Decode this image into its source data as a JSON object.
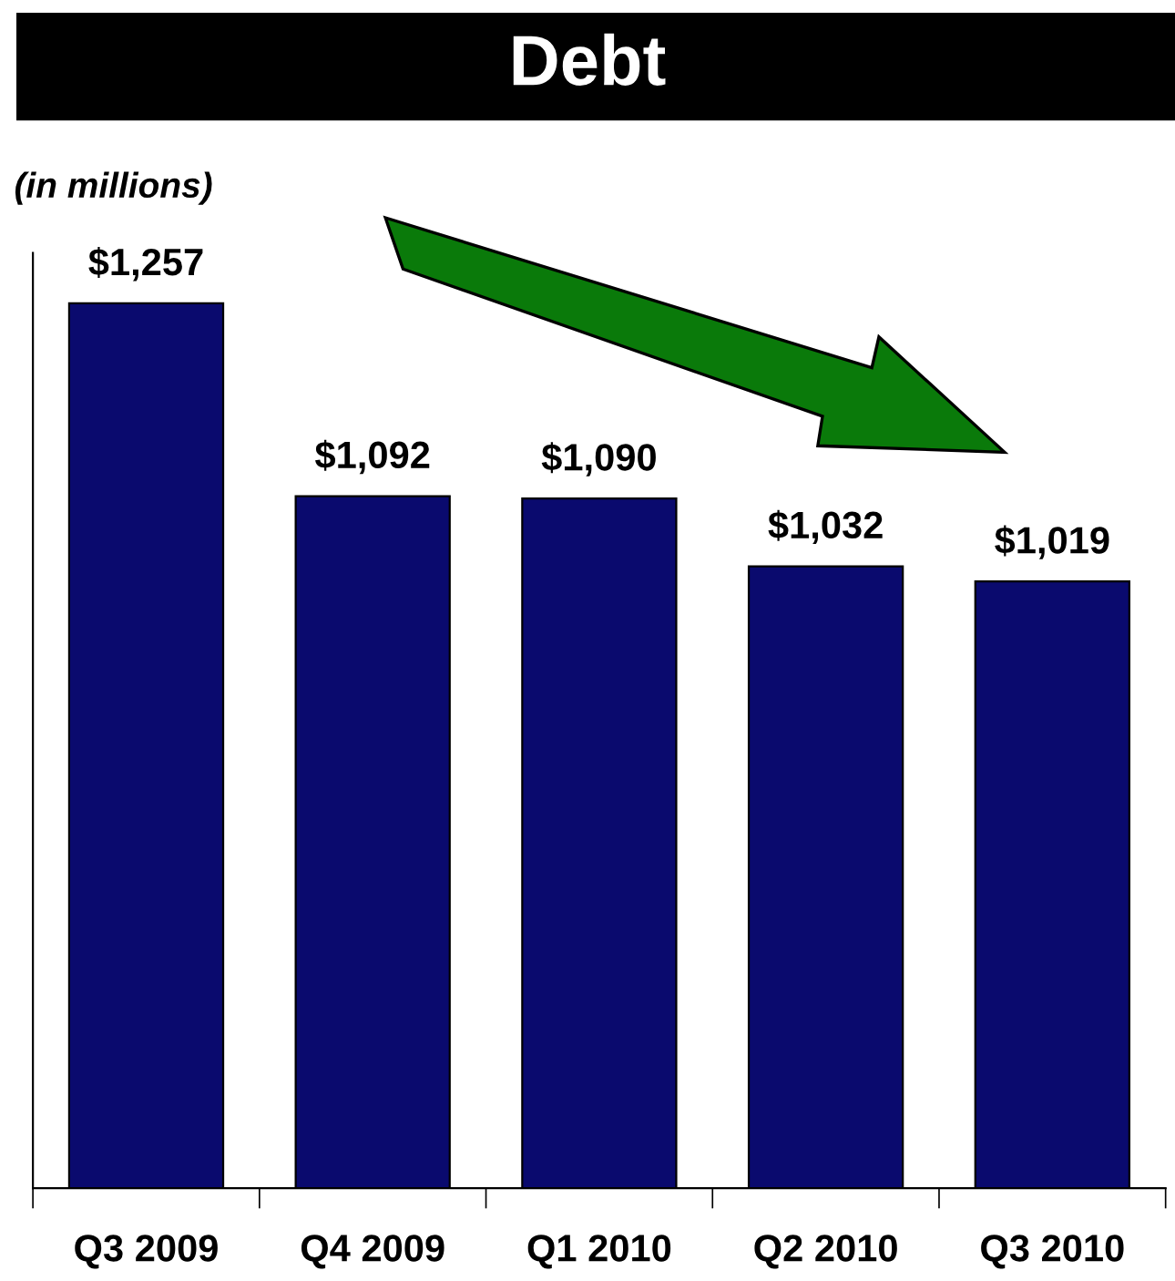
{
  "chart_data": {
    "type": "bar",
    "title": "Debt",
    "annotations": [
      "(in millions)"
    ],
    "categories": [
      "Q3 2009",
      "Q4 2009",
      "Q1 2010",
      "Q2 2010",
      "Q3 2010"
    ],
    "values": [
      1257,
      1092,
      1090,
      1032,
      1019
    ],
    "value_labels": [
      "$1,257",
      "$1,092",
      "$1,090",
      "$1,032",
      "$1,019"
    ],
    "color": "#0a0a6e",
    "ylim": [
      500,
      1300
    ],
    "tick_labels": "x",
    "grid": false,
    "legend": false
  }
}
